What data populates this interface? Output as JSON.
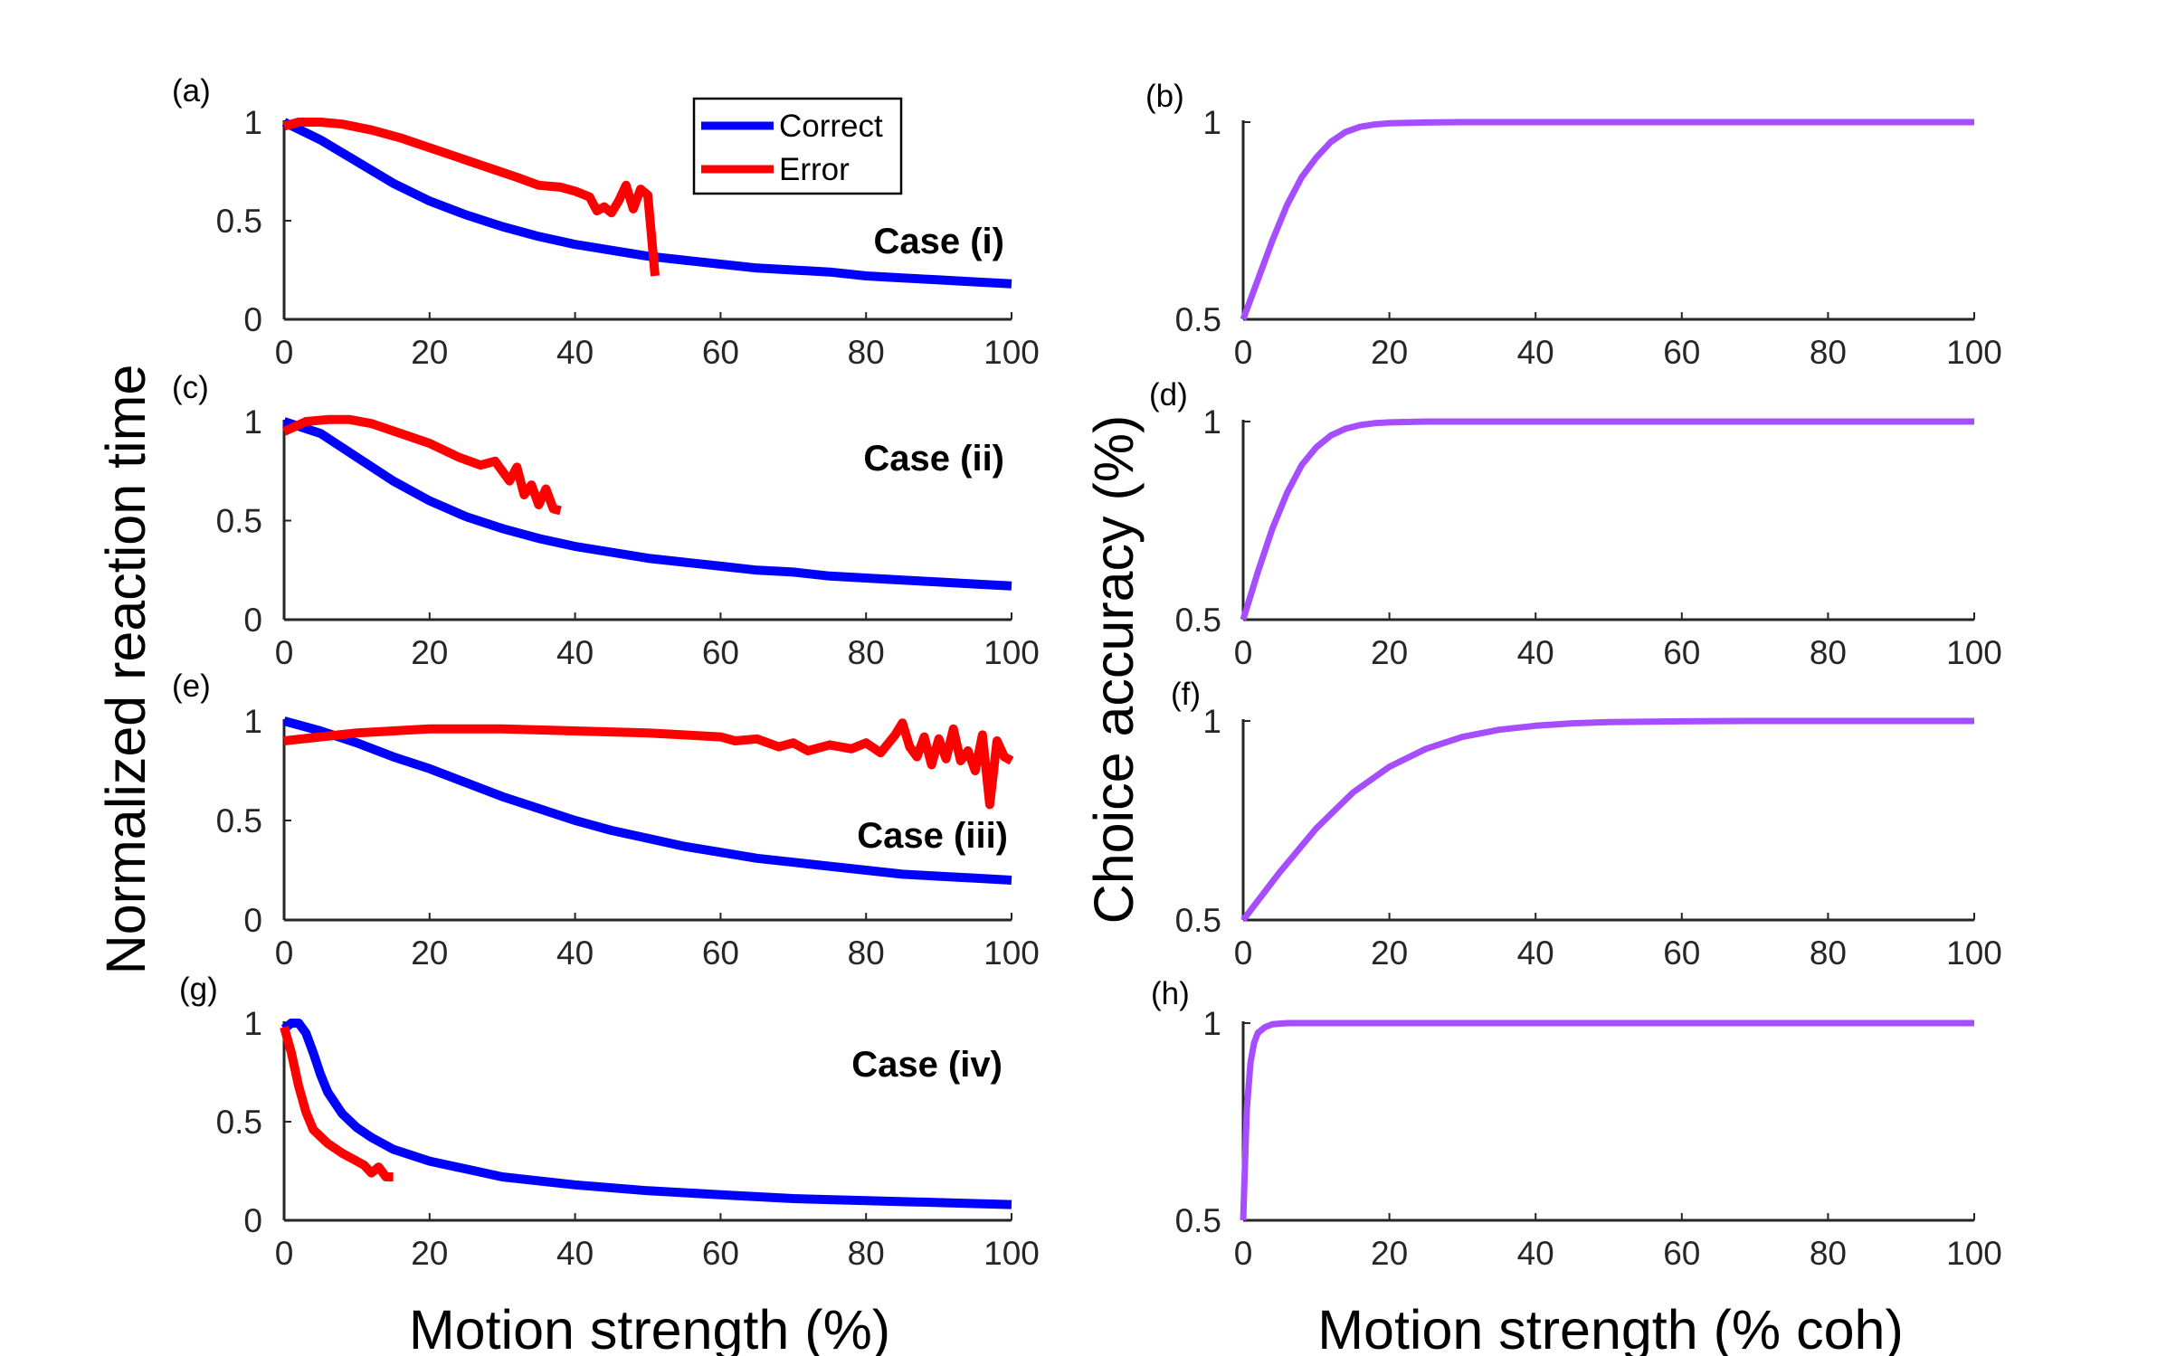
{
  "figure": {
    "left_ylabel": "Normalized reaction time",
    "left_xlabel": "Motion strength (%)",
    "right_ylabel": "Choice accuracy (%)",
    "right_xlabel": "Motion strength (% coh)"
  },
  "colors": {
    "correct": "#0000ff",
    "error": "#ff0000",
    "accuracy": "#a64dff",
    "axis": "#262626"
  },
  "legend": {
    "entries": [
      "Correct",
      "Error"
    ]
  },
  "chart_data": [
    {
      "panel": "(a)",
      "case_label": "Case (i)",
      "type": "line",
      "xlim": [
        0,
        100
      ],
      "ylim": [
        0,
        1
      ],
      "xticks": [
        "0",
        "20",
        "40",
        "60",
        "80",
        "100"
      ],
      "yticks": [
        "0",
        "0.5",
        "1"
      ],
      "series": [
        {
          "name": "Correct",
          "x": [
            0,
            5,
            10,
            15,
            20,
            25,
            30,
            35,
            40,
            45,
            50,
            55,
            60,
            65,
            70,
            75,
            80,
            85,
            90,
            95,
            100
          ],
          "y": [
            1.0,
            0.91,
            0.8,
            0.69,
            0.6,
            0.53,
            0.47,
            0.42,
            0.38,
            0.35,
            0.32,
            0.3,
            0.28,
            0.26,
            0.25,
            0.24,
            0.22,
            0.21,
            0.2,
            0.19,
            0.18
          ]
        },
        {
          "name": "Error",
          "x": [
            0,
            2,
            5,
            8,
            12,
            16,
            20,
            24,
            28,
            32,
            35,
            38,
            40,
            42,
            43,
            44,
            45,
            46,
            47,
            48,
            49,
            50,
            51
          ],
          "y": [
            0.98,
            1.0,
            1.0,
            0.99,
            0.96,
            0.92,
            0.87,
            0.82,
            0.77,
            0.72,
            0.68,
            0.67,
            0.65,
            0.62,
            0.55,
            0.57,
            0.54,
            0.6,
            0.68,
            0.56,
            0.66,
            0.63,
            0.22
          ]
        }
      ]
    },
    {
      "panel": "(b)",
      "type": "line",
      "xlim": [
        0,
        100
      ],
      "ylim": [
        0.5,
        1
      ],
      "xticks": [
        "0",
        "20",
        "40",
        "60",
        "80",
        "100"
      ],
      "yticks": [
        "0.5",
        "1"
      ],
      "series": [
        {
          "x": [
            0,
            2,
            4,
            6,
            8,
            10,
            12,
            14,
            16,
            18,
            20,
            25,
            30,
            40,
            60,
            80,
            100
          ],
          "y": [
            0.5,
            0.6,
            0.7,
            0.79,
            0.86,
            0.91,
            0.95,
            0.975,
            0.988,
            0.994,
            0.997,
            0.999,
            1.0,
            1.0,
            1.0,
            1.0,
            1.0
          ]
        }
      ]
    },
    {
      "panel": "(c)",
      "case_label": "Case (ii)",
      "type": "line",
      "xlim": [
        0,
        100
      ],
      "ylim": [
        0,
        1
      ],
      "xticks": [
        "0",
        "20",
        "40",
        "60",
        "80",
        "100"
      ],
      "yticks": [
        "0",
        "0.5",
        "1"
      ],
      "series": [
        {
          "name": "Correct",
          "x": [
            0,
            5,
            10,
            15,
            20,
            25,
            30,
            35,
            40,
            45,
            50,
            55,
            60,
            65,
            70,
            75,
            80,
            85,
            90,
            95,
            100
          ],
          "y": [
            1.0,
            0.94,
            0.82,
            0.7,
            0.6,
            0.52,
            0.46,
            0.41,
            0.37,
            0.34,
            0.31,
            0.29,
            0.27,
            0.25,
            0.24,
            0.22,
            0.21,
            0.2,
            0.19,
            0.18,
            0.17
          ]
        },
        {
          "name": "Error",
          "x": [
            0,
            3,
            6,
            9,
            12,
            16,
            20,
            24,
            27,
            29,
            31,
            32,
            33,
            34,
            35,
            36,
            37,
            38
          ],
          "y": [
            0.95,
            1.0,
            1.01,
            1.01,
            0.99,
            0.94,
            0.89,
            0.82,
            0.78,
            0.8,
            0.7,
            0.77,
            0.63,
            0.68,
            0.58,
            0.66,
            0.56,
            0.55
          ]
        }
      ]
    },
    {
      "panel": "(d)",
      "type": "line",
      "xlim": [
        0,
        100
      ],
      "ylim": [
        0.5,
        1
      ],
      "xticks": [
        "0",
        "20",
        "40",
        "60",
        "80",
        "100"
      ],
      "yticks": [
        "0.5",
        "1"
      ],
      "series": [
        {
          "x": [
            0,
            2,
            4,
            6,
            8,
            10,
            12,
            14,
            16,
            18,
            20,
            25,
            30,
            40,
            60,
            80,
            100
          ],
          "y": [
            0.5,
            0.62,
            0.73,
            0.82,
            0.89,
            0.935,
            0.965,
            0.982,
            0.991,
            0.996,
            0.998,
            1.0,
            1.0,
            1.0,
            1.0,
            1.0,
            1.0
          ]
        }
      ]
    },
    {
      "panel": "(e)",
      "case_label": "Case (iii)",
      "type": "line",
      "xlim": [
        0,
        100
      ],
      "ylim": [
        0,
        1
      ],
      "xticks": [
        "0",
        "20",
        "40",
        "60",
        "80",
        "100"
      ],
      "yticks": [
        "0",
        "0.5",
        "1"
      ],
      "series": [
        {
          "name": "Correct",
          "x": [
            0,
            5,
            10,
            15,
            20,
            25,
            30,
            35,
            40,
            45,
            50,
            55,
            60,
            65,
            70,
            75,
            80,
            85,
            90,
            95,
            100
          ],
          "y": [
            1.0,
            0.95,
            0.89,
            0.82,
            0.76,
            0.69,
            0.62,
            0.56,
            0.5,
            0.45,
            0.41,
            0.37,
            0.34,
            0.31,
            0.29,
            0.27,
            0.25,
            0.23,
            0.22,
            0.21,
            0.2
          ]
        },
        {
          "name": "Error",
          "x": [
            0,
            10,
            20,
            30,
            40,
            50,
            60,
            62,
            65,
            68,
            70,
            72,
            75,
            78,
            80,
            82,
            84,
            85,
            86,
            87,
            88,
            89,
            90,
            91,
            92,
            93,
            94,
            95,
            96,
            97,
            98,
            99,
            100
          ],
          "y": [
            0.9,
            0.94,
            0.96,
            0.96,
            0.95,
            0.94,
            0.92,
            0.9,
            0.91,
            0.87,
            0.89,
            0.85,
            0.88,
            0.86,
            0.89,
            0.84,
            0.93,
            0.99,
            0.87,
            0.82,
            0.92,
            0.78,
            0.91,
            0.81,
            0.96,
            0.8,
            0.85,
            0.75,
            0.93,
            0.58,
            0.9,
            0.82,
            0.8
          ]
        }
      ]
    },
    {
      "panel": "(f)",
      "type": "line",
      "xlim": [
        0,
        100
      ],
      "ylim": [
        0.5,
        1
      ],
      "xticks": [
        "0",
        "20",
        "40",
        "60",
        "80",
        "100"
      ],
      "yticks": [
        "0.5",
        "1"
      ],
      "series": [
        {
          "x": [
            0,
            5,
            10,
            15,
            20,
            25,
            30,
            35,
            40,
            45,
            50,
            60,
            70,
            80,
            100
          ],
          "y": [
            0.5,
            0.62,
            0.73,
            0.82,
            0.885,
            0.93,
            0.96,
            0.978,
            0.988,
            0.994,
            0.997,
            0.999,
            1.0,
            1.0,
            1.0
          ]
        }
      ]
    },
    {
      "panel": "(g)",
      "case_label": "Case (iv)",
      "type": "line",
      "xlim": [
        0,
        100
      ],
      "ylim": [
        0,
        1
      ],
      "xticks": [
        "0",
        "20",
        "40",
        "60",
        "80",
        "100"
      ],
      "yticks": [
        "0",
        "0.5",
        "1"
      ],
      "series": [
        {
          "name": "Correct",
          "x": [
            0,
            1,
            2,
            3,
            4,
            5,
            6,
            8,
            10,
            12,
            15,
            20,
            25,
            30,
            40,
            50,
            60,
            70,
            80,
            90,
            100
          ],
          "y": [
            0.97,
            1.0,
            1.0,
            0.95,
            0.85,
            0.74,
            0.65,
            0.54,
            0.47,
            0.42,
            0.36,
            0.3,
            0.26,
            0.22,
            0.18,
            0.15,
            0.13,
            0.11,
            0.1,
            0.09,
            0.08
          ]
        },
        {
          "name": "Error",
          "x": [
            0,
            1,
            2,
            3,
            4,
            6,
            8,
            10,
            11,
            12,
            13,
            14,
            15
          ],
          "y": [
            0.98,
            0.85,
            0.68,
            0.55,
            0.46,
            0.39,
            0.34,
            0.3,
            0.28,
            0.24,
            0.27,
            0.22,
            0.22
          ]
        }
      ]
    },
    {
      "panel": "(h)",
      "type": "line",
      "xlim": [
        0,
        100
      ],
      "ylim": [
        0.5,
        1
      ],
      "xticks": [
        "0",
        "20",
        "40",
        "60",
        "80",
        "100"
      ],
      "yticks": [
        "0.5",
        "1"
      ],
      "series": [
        {
          "x": [
            0,
            0.5,
            1,
            1.5,
            2,
            3,
            4,
            6,
            10,
            20,
            40,
            60,
            80,
            100
          ],
          "y": [
            0.5,
            0.78,
            0.9,
            0.95,
            0.975,
            0.99,
            0.997,
            1.0,
            1.0,
            1.0,
            1.0,
            1.0,
            1.0,
            1.0
          ]
        }
      ]
    }
  ]
}
